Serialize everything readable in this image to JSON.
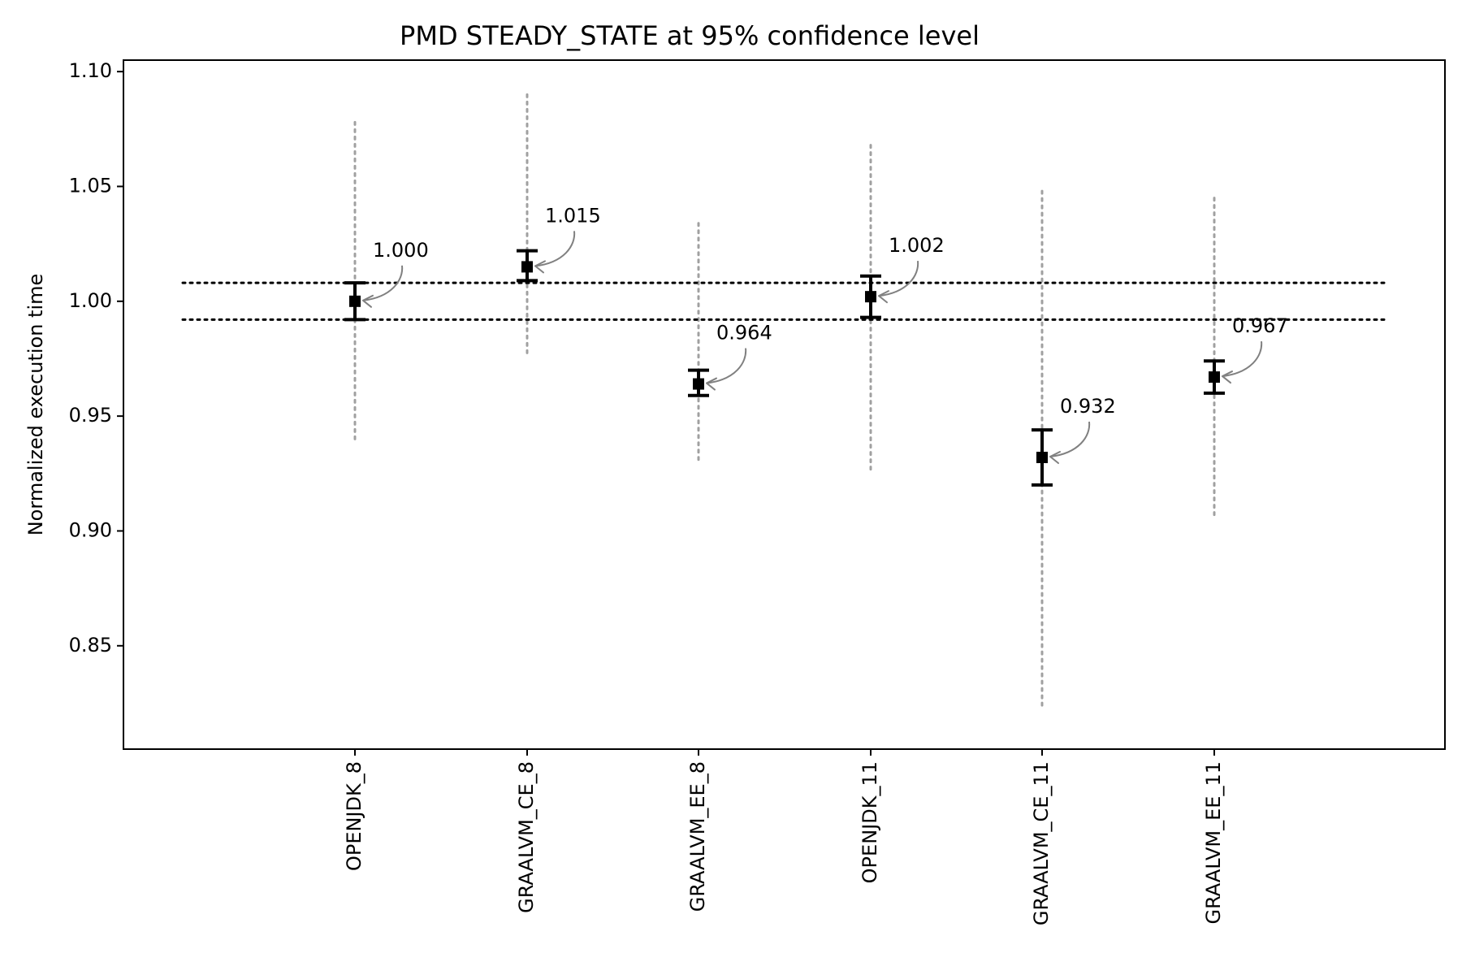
{
  "chart_data": {
    "type": "scatter",
    "title": "PMD STEADY_STATE at 95% confidence level",
    "xlabel": "",
    "ylabel": "Normalized execution time",
    "ylim": [
      0.805,
      1.105
    ],
    "yticks": [
      0.85,
      0.9,
      0.95,
      1.0,
      1.05,
      1.1
    ],
    "ytick_labels": [
      "0.85",
      "0.90",
      "0.95",
      "1.00",
      "1.05",
      "1.10"
    ],
    "categories": [
      "OPENJDK_8",
      "GRAALVM_CE_8",
      "GRAALVM_EE_8",
      "OPENJDK_11",
      "GRAALVM_CE_11",
      "GRAALVM_EE_11"
    ],
    "series": [
      {
        "values": [
          1.0,
          1.015,
          0.964,
          1.002,
          0.932,
          0.967
        ],
        "labels": [
          "1.000",
          "1.015",
          "0.964",
          "1.002",
          "0.932",
          "0.967"
        ],
        "ci_low": [
          0.992,
          1.009,
          0.959,
          0.993,
          0.92,
          0.96
        ],
        "ci_high": [
          1.008,
          1.022,
          0.97,
          1.011,
          0.944,
          0.974
        ],
        "range_low": [
          0.94,
          0.976,
          0.931,
          0.926,
          0.822,
          0.907
        ],
        "range_high": [
          1.078,
          1.09,
          1.034,
          1.068,
          1.048,
          1.045
        ]
      }
    ],
    "reference_lines": [
      0.992,
      1.008
    ],
    "grid": false,
    "colors": {
      "point": "#000000",
      "error_bar": "#000000",
      "range_line": "#a0a0a0",
      "reference_line": "#000000",
      "annotation_arrow": "#808080"
    }
  }
}
